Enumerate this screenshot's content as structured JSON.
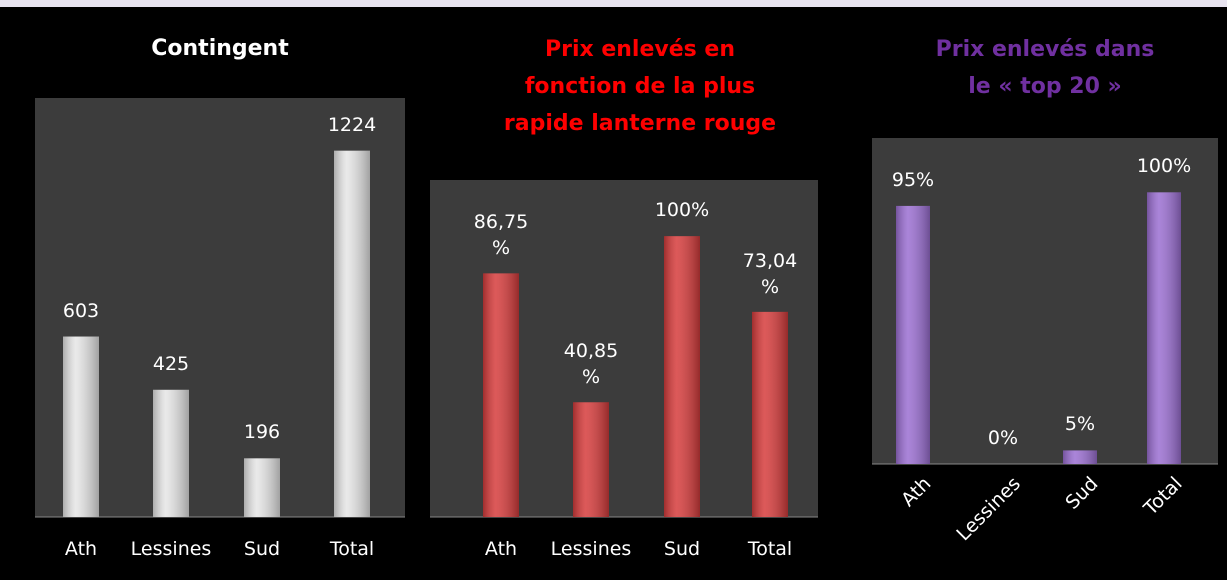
{
  "chart_data": [
    {
      "type": "bar",
      "title": "Contingent",
      "categories": [
        "Ath",
        "Lessines",
        "Sud",
        "Total"
      ],
      "values": [
        603,
        425,
        196,
        1224
      ],
      "color": "#e6e6e6",
      "title_color": "#ffffff",
      "ylim": [
        0,
        1400
      ]
    },
    {
      "type": "bar",
      "title": "Prix enlevés en\nfonction de la plus\nrapide lanterne rouge",
      "categories": [
        "Ath",
        "Lessines",
        "Sud",
        "Total"
      ],
      "values": [
        86.75,
        40.85,
        100,
        73.04
      ],
      "value_labels": [
        "86,75\n%",
        "40,85\n%",
        "100%",
        "73,04\n%"
      ],
      "color": "#d63c3c",
      "title_color": "#ff0000",
      "ylim": [
        0,
        120
      ]
    },
    {
      "type": "bar",
      "title": "Prix enlevés dans\nle « top 20 »",
      "categories": [
        "Ath",
        "Lessines",
        "Sud",
        "Total"
      ],
      "values": [
        95,
        0,
        5,
        100
      ],
      "value_labels": [
        "95%",
        "0%",
        "5%",
        "100%"
      ],
      "color": "#9b6fd2",
      "title_color": "#7030a0",
      "ylim": [
        0,
        120
      ]
    }
  ]
}
